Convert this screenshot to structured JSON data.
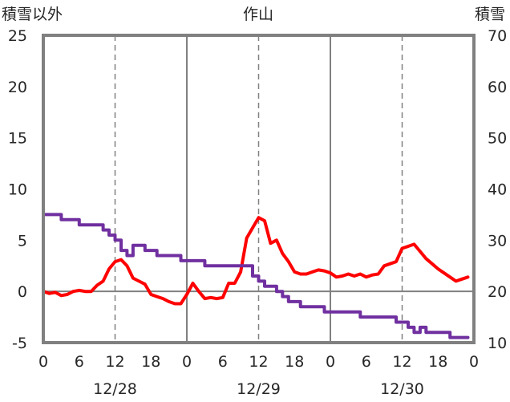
{
  "chart_data": {
    "type": "line",
    "title": "作山",
    "left_axis_label": "積雪以外",
    "right_axis_label": "積雪",
    "left_ylim": [
      -5,
      25
    ],
    "left_yticks": [
      -5,
      0,
      5,
      10,
      15,
      20,
      25
    ],
    "right_ylim": [
      10,
      70
    ],
    "right_yticks": [
      10,
      20,
      30,
      40,
      50,
      60,
      70
    ],
    "x_range_hours": [
      0,
      72
    ],
    "x_tick_labels": [
      "0",
      "6",
      "12",
      "18",
      "0",
      "6",
      "12",
      "18",
      "0",
      "6",
      "12",
      "18",
      "0"
    ],
    "date_labels": [
      "12/28",
      "12/29",
      "12/30"
    ],
    "grid": "vertical lines at each day boundary (solid) and noon (dashed); horizontal line at 0",
    "series": [
      {
        "axis": "left",
        "color": "#ff0000",
        "x": [
          0,
          1,
          2,
          3,
          4,
          5,
          6,
          7,
          8,
          9,
          10,
          11,
          12,
          13,
          14,
          15,
          16,
          17,
          18,
          19,
          20,
          21,
          22,
          23,
          24,
          25,
          26,
          27,
          28,
          29,
          30,
          31,
          32,
          33,
          34,
          35,
          36,
          37,
          38,
          39,
          40,
          41,
          42,
          43,
          44,
          45,
          46,
          47,
          48,
          49,
          50,
          51,
          52,
          53,
          54,
          55,
          56,
          57,
          58,
          59,
          60,
          61,
          62,
          63,
          64,
          65,
          66,
          67,
          68,
          69,
          70,
          71
        ],
        "values": [
          0.0,
          -0.2,
          -0.1,
          -0.4,
          -0.3,
          0.0,
          0.1,
          0.0,
          0.0,
          0.6,
          1.0,
          2.2,
          2.9,
          3.1,
          2.5,
          1.3,
          1.0,
          0.7,
          -0.3,
          -0.5,
          -0.7,
          -1.0,
          -1.2,
          -1.2,
          -0.3,
          0.8,
          0.0,
          -0.7,
          -0.6,
          -0.7,
          -0.6,
          0.8,
          0.8,
          1.9,
          5.2,
          6.2,
          7.2,
          6.9,
          4.7,
          5.0,
          3.7,
          2.9,
          1.9,
          1.7,
          1.7,
          1.9,
          2.1,
          2.0,
          1.8,
          1.4,
          1.5,
          1.7,
          1.5,
          1.7,
          1.4,
          1.6,
          1.7,
          2.5,
          2.7,
          2.9,
          4.2,
          4.4,
          4.6,
          3.9,
          3.2,
          2.7,
          2.2,
          1.8,
          1.4,
          1.0,
          1.2,
          1.4
        ]
      },
      {
        "axis": "right",
        "color": "#7030a0",
        "x": [
          0,
          1,
          2,
          3,
          4,
          5,
          6,
          7,
          8,
          9,
          10,
          11,
          12,
          13,
          14,
          15,
          16,
          17,
          18,
          19,
          20,
          21,
          22,
          23,
          24,
          25,
          26,
          27,
          28,
          29,
          30,
          31,
          32,
          33,
          34,
          35,
          36,
          37,
          38,
          39,
          40,
          41,
          42,
          43,
          44,
          45,
          46,
          47,
          48,
          49,
          50,
          51,
          52,
          53,
          54,
          55,
          56,
          57,
          58,
          59,
          60,
          61,
          62,
          63,
          64,
          65,
          66,
          67,
          68,
          69,
          70,
          71
        ],
        "values": [
          35,
          35,
          35,
          34,
          34,
          34,
          33,
          33,
          33,
          33,
          32,
          31,
          30,
          28,
          27,
          29,
          29,
          28,
          28,
          27,
          27,
          27,
          27,
          26,
          26,
          26,
          26,
          25,
          25,
          25,
          25,
          25,
          25,
          25,
          25,
          23,
          22,
          21,
          21,
          20,
          19,
          18,
          18,
          17,
          17,
          17,
          17,
          16,
          16,
          16,
          16,
          16,
          16,
          15,
          15,
          15,
          15,
          15,
          15,
          14,
          14,
          13,
          12,
          13,
          12,
          12,
          12,
          12,
          11,
          11,
          11,
          11
        ]
      }
    ]
  }
}
